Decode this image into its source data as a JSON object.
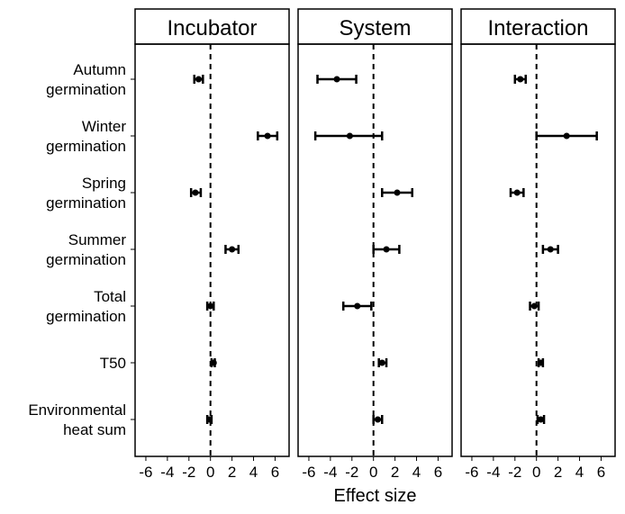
{
  "chart_data": {
    "type": "forest",
    "xlabel": "Effect size",
    "xlim": [
      -7,
      7.3
    ],
    "xticks": [
      -6,
      -4,
      -2,
      0,
      2,
      4,
      6
    ],
    "xtick_labels": [
      "-6",
      "-4",
      "-2",
      "0",
      "2",
      "4",
      "6"
    ],
    "reference_line": 0,
    "categories": [
      {
        "id": "autumn",
        "label_lines": [
          "Autumn",
          "germination"
        ]
      },
      {
        "id": "winter",
        "label_lines": [
          "Winter",
          "germination"
        ]
      },
      {
        "id": "spring",
        "label_lines": [
          "Spring",
          "germination"
        ]
      },
      {
        "id": "summer",
        "label_lines": [
          "Summer",
          "germination"
        ]
      },
      {
        "id": "total",
        "label_lines": [
          "Total",
          "germination"
        ]
      },
      {
        "id": "t50",
        "label_lines": [
          "T50"
        ]
      },
      {
        "id": "heatsum",
        "label_lines": [
          "Environmental",
          "heat sum"
        ]
      }
    ],
    "panels": [
      {
        "title": "Incubator",
        "points": [
          {
            "estimate": -1.1,
            "lower": -1.5,
            "upper": -0.7
          },
          {
            "estimate": 5.3,
            "lower": 4.4,
            "upper": 6.2
          },
          {
            "estimate": -1.4,
            "lower": -1.8,
            "upper": -0.9
          },
          {
            "estimate": 2.0,
            "lower": 1.4,
            "upper": 2.6
          },
          {
            "estimate": 0.0,
            "lower": -0.3,
            "upper": 0.3
          },
          {
            "estimate": 0.3,
            "lower": 0.1,
            "upper": 0.4
          },
          {
            "estimate": -0.1,
            "lower": -0.3,
            "upper": 0.1
          }
        ]
      },
      {
        "title": "System",
        "points": [
          {
            "estimate": -3.4,
            "lower": -5.2,
            "upper": -1.6
          },
          {
            "estimate": -2.2,
            "lower": -5.4,
            "upper": 0.8
          },
          {
            "estimate": 2.2,
            "lower": 0.8,
            "upper": 3.6
          },
          {
            "estimate": 1.2,
            "lower": 0.0,
            "upper": 2.4
          },
          {
            "estimate": -1.5,
            "lower": -2.8,
            "upper": -0.2
          },
          {
            "estimate": 0.8,
            "lower": 0.5,
            "upper": 1.2
          },
          {
            "estimate": 0.4,
            "lower": 0.0,
            "upper": 0.8
          }
        ]
      },
      {
        "title": "Interaction",
        "points": [
          {
            "estimate": -1.5,
            "lower": -2.0,
            "upper": -1.0
          },
          {
            "estimate": 2.8,
            "lower": 0.0,
            "upper": 5.6
          },
          {
            "estimate": -1.8,
            "lower": -2.4,
            "upper": -1.2
          },
          {
            "estimate": 1.3,
            "lower": 0.6,
            "upper": 2.0
          },
          {
            "estimate": -0.2,
            "lower": -0.6,
            "upper": 0.2
          },
          {
            "estimate": 0.4,
            "lower": 0.2,
            "upper": 0.6
          },
          {
            "estimate": 0.4,
            "lower": 0.1,
            "upper": 0.7
          }
        ]
      }
    ]
  }
}
